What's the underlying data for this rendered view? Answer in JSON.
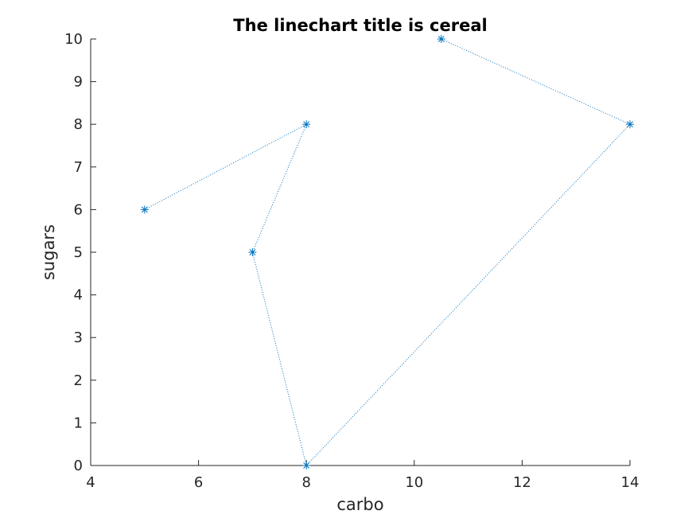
{
  "chart_data": {
    "type": "line",
    "title": "The linechart title is cereal",
    "xlabel": "carbo",
    "ylabel": "sugars",
    "xlim": [
      4,
      14
    ],
    "ylim": [
      0,
      10
    ],
    "xticks": [
      4,
      6,
      8,
      10,
      12,
      14
    ],
    "yticks": [
      0,
      1,
      2,
      3,
      4,
      5,
      6,
      7,
      8,
      9,
      10
    ],
    "grid": false,
    "legend": "none",
    "series": [
      {
        "color": "#0072BD",
        "line_style": "dotted",
        "marker": "asterisk",
        "x": [
          5,
          8,
          7,
          8,
          14,
          10.5
        ],
        "y": [
          6,
          8,
          5,
          0,
          8,
          10
        ]
      }
    ]
  }
}
